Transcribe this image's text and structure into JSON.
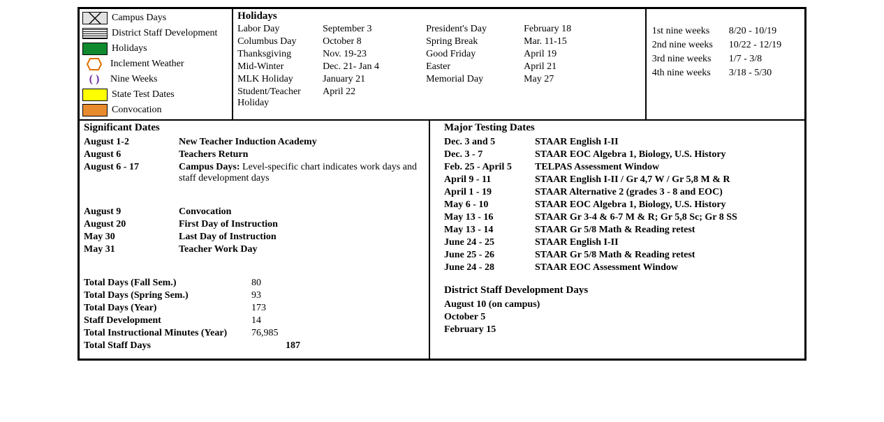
{
  "legend": {
    "campus": "Campus Days",
    "district": "District Staff Development",
    "holidays": "Holidays",
    "inclement": "Inclement Weather",
    "nineweeks": "Nine Weeks",
    "state": "State Test Dates",
    "convocation": "Convocation",
    "colors": {
      "holidays_bg": "#0f8a2f",
      "inclement_border": "#e07000",
      "nineweeks_color": "#7030a0",
      "state_bg": "#ffff00",
      "convocation_bg": "#e88b2e",
      "campus_bg": "#e2e2e2"
    }
  },
  "holidays": {
    "title": "Holidays",
    "items": [
      {
        "name": "Labor Day",
        "date": "September 3"
      },
      {
        "name": "Columbus Day",
        "date": "October 8"
      },
      {
        "name": "Thanksgiving",
        "date": "Nov. 19-23"
      },
      {
        "name": "Mid-Winter",
        "date": "Dec. 21- Jan 4"
      },
      {
        "name": "MLK Holiday",
        "date": "January 21"
      },
      {
        "name": "Student/Teacher Holiday",
        "date": "April 22"
      }
    ],
    "items2": [
      {
        "name": "President's Day",
        "date": "February 18"
      },
      {
        "name": "Spring Break",
        "date": "Mar. 11-15"
      },
      {
        "name": "Good Friday",
        "date": "April 19"
      },
      {
        "name": "Easter",
        "date": "April 21"
      },
      {
        "name": "Memorial Day",
        "date": "May 27"
      }
    ]
  },
  "weeks": [
    {
      "label": "1st nine weeks",
      "range": "8/20 - 10/19"
    },
    {
      "label": "2nd nine weeks",
      "range": "10/22 - 12/19"
    },
    {
      "label": "3rd nine weeks",
      "range": "1/7 - 3/8"
    },
    {
      "label": "4th nine weeks",
      "range": "3/18 - 5/30"
    }
  ],
  "significant": {
    "title": "Significant Dates",
    "rows1": [
      {
        "d": "August 1-2",
        "v": "New Teacher Induction Academy"
      },
      {
        "d": "August 6",
        "v": "Teachers Return"
      }
    ],
    "campus_row_d": "August 6 - 17",
    "campus_row_lead": "Campus Days:",
    "campus_row_rest": " Level-specific chart indicates work days and staff development days",
    "rows2": [
      {
        "d": "August 9",
        "v": "Convocation"
      },
      {
        "d": "August 20",
        "v": "First Day of Instruction"
      },
      {
        "d": "May 30",
        "v": "Last Day of Instruction"
      },
      {
        "d": "May 31",
        "v": "Teacher Work Day"
      }
    ],
    "totals": [
      {
        "l": "Total Days (Fall Sem.)",
        "n": "80"
      },
      {
        "l": "Total Days (Spring Sem.)",
        "n": "93"
      },
      {
        "l": "Total Days (Year)",
        "n": "173"
      },
      {
        "l": "Staff Development",
        "n": "14"
      },
      {
        "l": "Total Instructional Minutes (Year)",
        "n": "76,985"
      }
    ],
    "total_staff_label": "Total Staff Days",
    "total_staff_value": "187"
  },
  "testing": {
    "title": "Major Testing Dates",
    "rows": [
      {
        "d": "Dec. 3 and 5",
        "v": "STAAR English I-II"
      },
      {
        "d": "Dec. 3 - 7",
        "v": "STAAR EOC Algebra 1, Biology, U.S. History"
      },
      {
        "d": "Feb. 25 - April 5",
        "v": "TELPAS Assessment Window"
      },
      {
        "d": "April 9 - 11",
        "v": "STAAR English I-II / Gr 4,7 W / Gr 5,8 M & R"
      },
      {
        "d": "April 1 - 19",
        "v": "STAAR Alternative 2 (grades 3 - 8 and EOC)"
      },
      {
        "d": "May 6 - 10",
        "v": "STAAR EOC Algebra 1, Biology, U.S. History"
      },
      {
        "d": "May 13 - 16",
        "v": "STAAR Gr 3-4 & 6-7 M & R; Gr 5,8 Sc; Gr 8 SS"
      },
      {
        "d": "May 13 - 14",
        "v": "STAAR Gr 5/8 Math & Reading retest"
      },
      {
        "d": "June 24 - 25",
        "v": "STAAR English I-II"
      },
      {
        "d": "June 25 - 26",
        "v": "STAAR Gr 5/8 Math & Reading retest"
      },
      {
        "d": "June 24 - 28",
        "v": "STAAR EOC Assessment Window"
      }
    ]
  },
  "ddd": {
    "title": "District Staff Development Days",
    "rows": [
      "August 10 (on campus)",
      "October 5",
      "February 15"
    ]
  }
}
